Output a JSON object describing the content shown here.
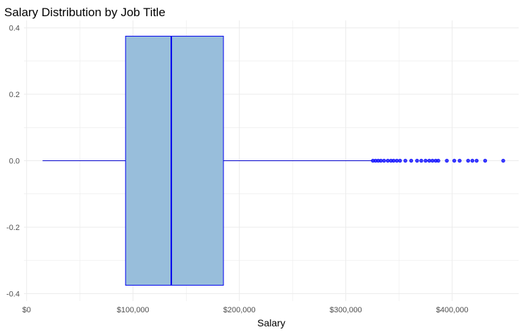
{
  "chart_data": {
    "type": "boxplot",
    "title": "Salary Distribution by Job Title",
    "xlabel": "Salary",
    "ylabel": "",
    "xlim": [
      -2500,
      462500
    ],
    "ylim": [
      -0.4,
      0.4
    ],
    "grid": true,
    "x_ticks": [
      {
        "value": 0,
        "label": "$0"
      },
      {
        "value": 100000,
        "label": "$100,000"
      },
      {
        "value": 200000,
        "label": "$200,000"
      },
      {
        "value": 300000,
        "label": "$300,000"
      },
      {
        "value": 400000,
        "label": "$400,000"
      }
    ],
    "y_ticks": [
      {
        "value": 0.4,
        "label": "0.4"
      },
      {
        "value": 0.2,
        "label": "0.2"
      },
      {
        "value": 0.0,
        "label": "0.0"
      },
      {
        "value": -0.2,
        "label": "-0.2"
      },
      {
        "value": -0.4,
        "label": "-0.4"
      }
    ],
    "box": {
      "whisker_low": 15000,
      "q1": 93000,
      "median": 136000,
      "q3": 185000,
      "whisker_high": 325000,
      "y_bottom": -0.375,
      "y_top": 0.375
    },
    "outliers": [
      325500,
      328000,
      330500,
      333000,
      336000,
      339500,
      342500,
      345000,
      348000,
      351000,
      356000,
      361500,
      367000,
      371000,
      375000,
      378500,
      381500,
      384500,
      387000,
      395000,
      402000,
      407000,
      415000,
      419000,
      423000,
      431000,
      448000
    ],
    "colors": {
      "box_fill": "#98bedb",
      "box_stroke": "#0000ee",
      "median": "#0000ee",
      "whisker": "#0000cc",
      "outlier": "#0000ff",
      "grid": "#ebebeb"
    }
  }
}
